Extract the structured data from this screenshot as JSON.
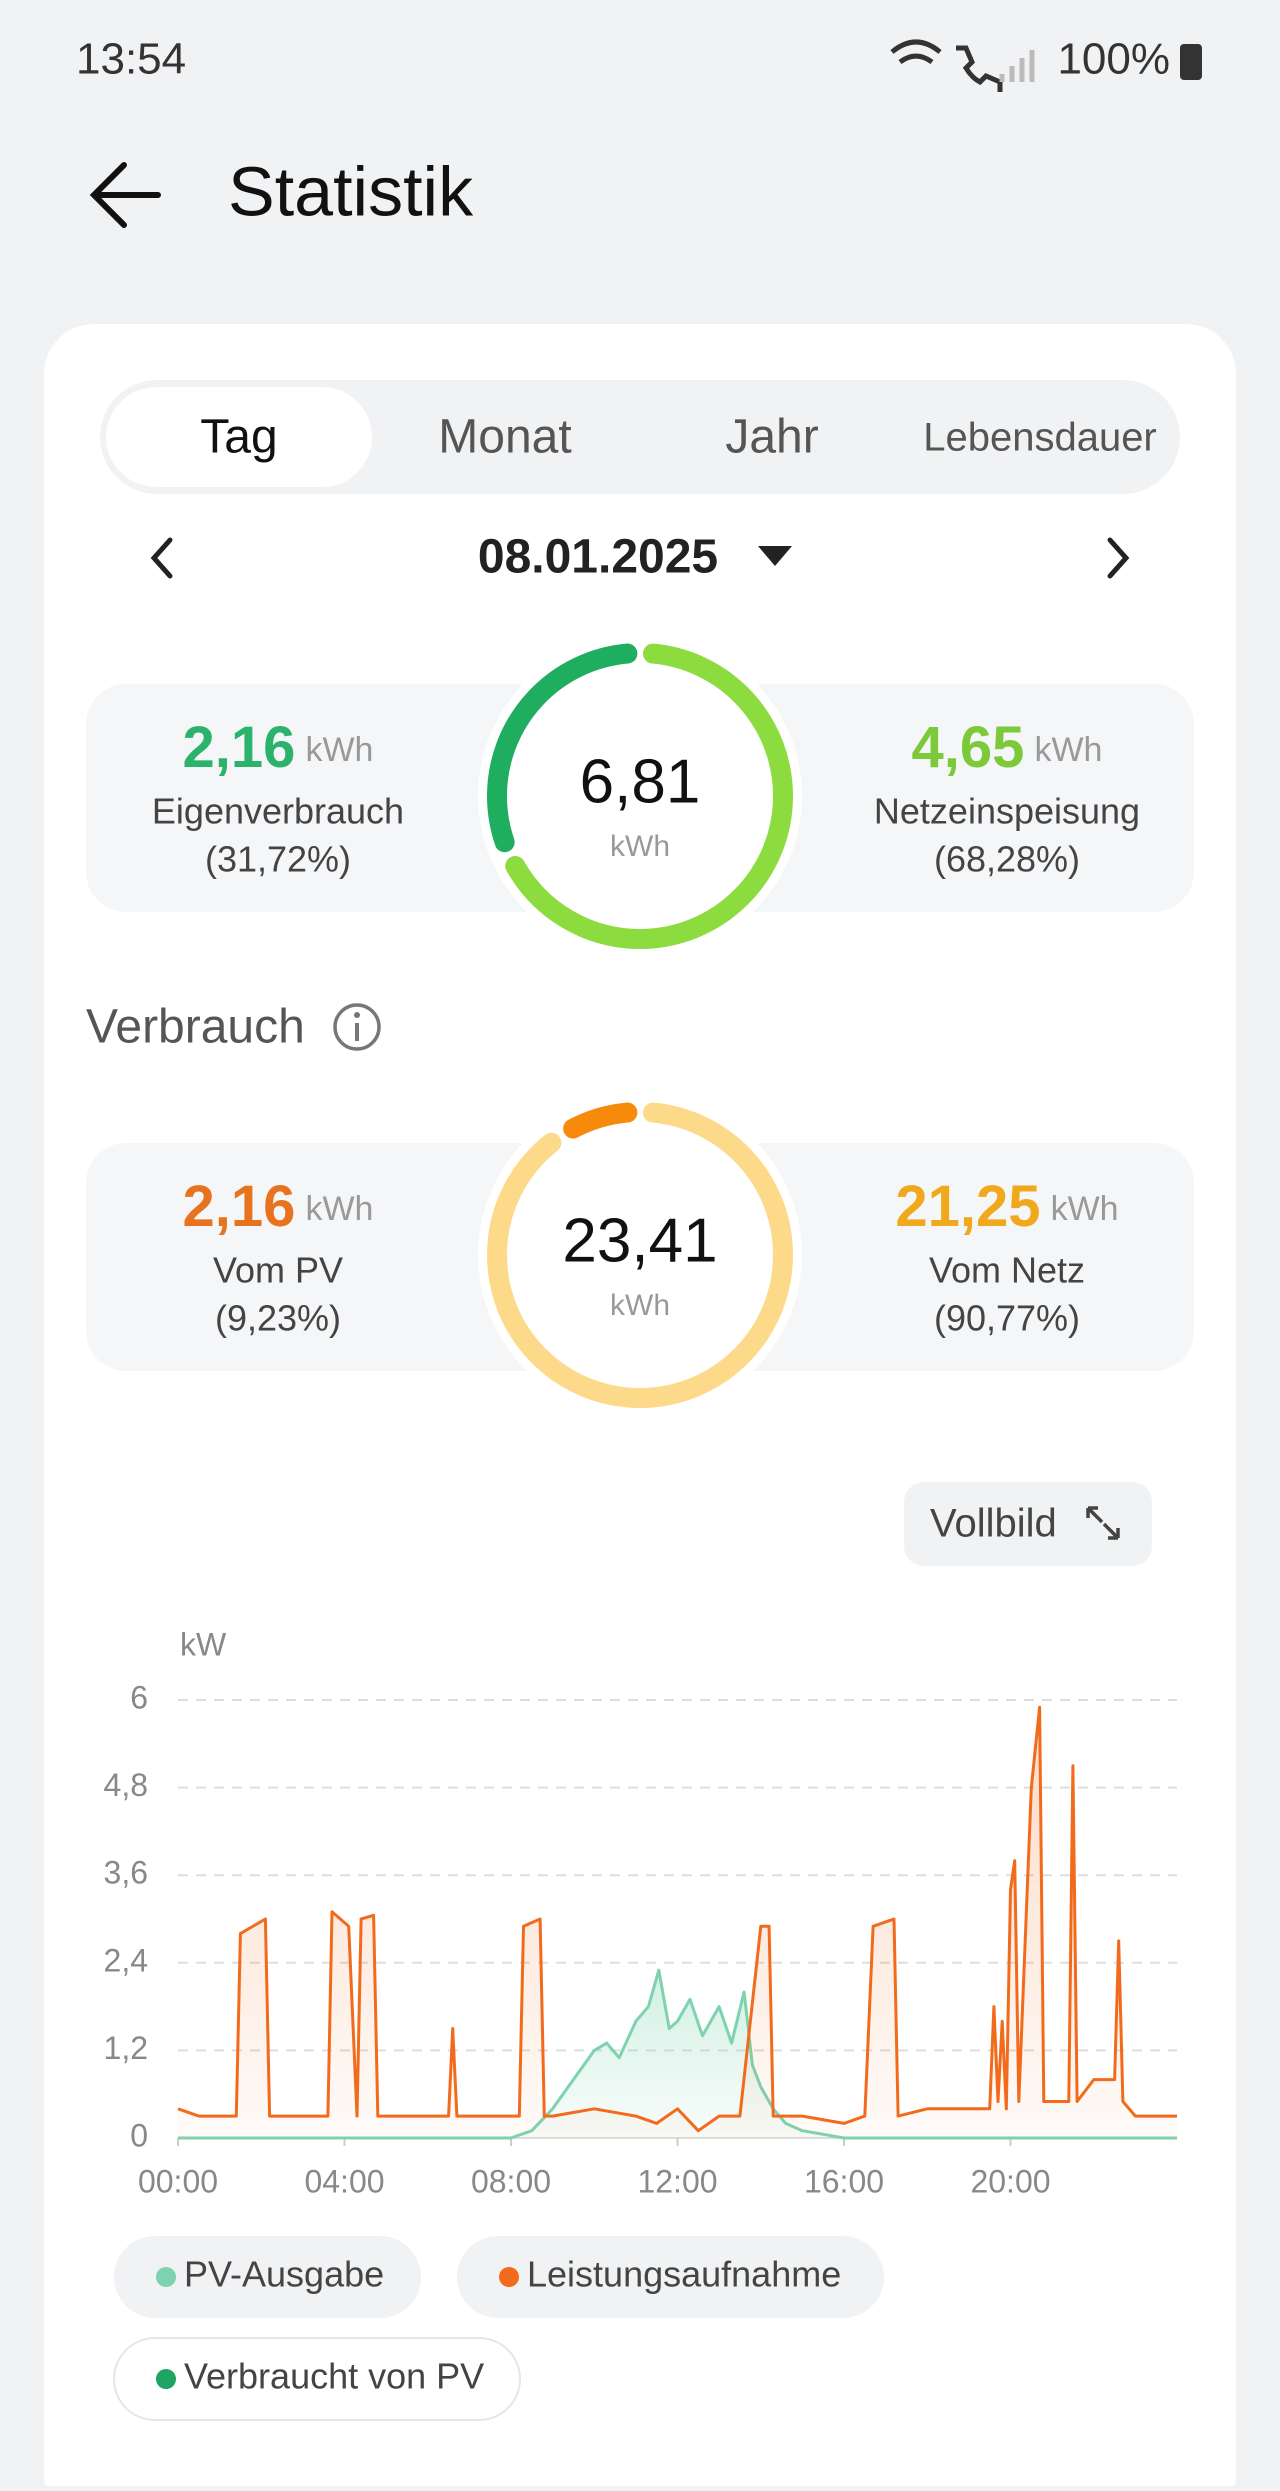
{
  "status": {
    "time": "13:54",
    "battery": "100%"
  },
  "header": {
    "title": "Statistik"
  },
  "tabs": [
    "Tag",
    "Monat",
    "Jahr",
    "Lebensdauer"
  ],
  "date": "08.01.2025",
  "production": {
    "center_value": "6,81",
    "center_unit": "kWh",
    "left": {
      "value": "2,16",
      "unit": "kWh",
      "label": "Eigenverbrauch",
      "percent": "(31,72%)"
    },
    "right": {
      "value": "4,65",
      "unit": "kWh",
      "label": "Netzeinspeisung",
      "percent": "(68,28%)"
    }
  },
  "consumption": {
    "title": "Verbrauch",
    "center_value": "23,41",
    "center_unit": "kWh",
    "left": {
      "value": "2,16",
      "unit": "kWh",
      "label": "Vom PV",
      "percent": "(9,23%)"
    },
    "right": {
      "value": "21,25",
      "unit": "kWh",
      "label": "Vom Netz",
      "percent": "(90,77%)"
    }
  },
  "button": "Vollbild",
  "chart_data": {
    "type": "line",
    "y_unit": "kW",
    "xlim": [
      0,
      24
    ],
    "xticks": [
      {
        "value": 0,
        "label": "00:00"
      },
      {
        "value": 4,
        "label": "04:00"
      },
      {
        "value": 8,
        "label": "08:00"
      },
      {
        "value": 12,
        "label": "12:00"
      },
      {
        "value": 16,
        "label": "16:00"
      },
      {
        "value": 20,
        "label": "20:00"
      }
    ],
    "ylim": [
      0,
      6
    ],
    "yticks": [
      0,
      {
        "value": 1.2,
        "label": "1,2"
      },
      {
        "value": 2.4,
        "label": "2,4"
      },
      {
        "value": 3.6,
        "label": "3,6"
      },
      {
        "value": 4.8,
        "label": "4,8"
      },
      6
    ],
    "grid": true,
    "series": [
      {
        "name": "PV-Ausgabe",
        "color": "#7dd3b0",
        "x": [
          0,
          8,
          8.5,
          9,
          9.5,
          10,
          10.3,
          10.6,
          11,
          11.3,
          11.55,
          11.8,
          12,
          12.3,
          12.6,
          13,
          13.3,
          13.6,
          13.8,
          14,
          14.3,
          14.6,
          15,
          15.5,
          16,
          24
        ],
        "values": [
          0,
          0,
          0.1,
          0.4,
          0.8,
          1.2,
          1.3,
          1.1,
          1.6,
          1.8,
          2.3,
          1.5,
          1.6,
          1.9,
          1.4,
          1.8,
          1.3,
          2.0,
          1.0,
          0.7,
          0.4,
          0.2,
          0.1,
          0.05,
          0,
          0
        ]
      },
      {
        "name": "Leistungsaufnahme",
        "color": "#f26b1d",
        "x": [
          0,
          0.5,
          1.4,
          1.5,
          2.1,
          2.2,
          3.6,
          3.7,
          4.1,
          4.3,
          4.4,
          4.7,
          4.8,
          6.5,
          6.6,
          6.7,
          8.2,
          8.3,
          8.7,
          8.8,
          9,
          10,
          11,
          11.5,
          12,
          12.5,
          13,
          13.5,
          14,
          14.2,
          14.3,
          15,
          16,
          16.5,
          16.7,
          17.2,
          17.3,
          18,
          19.5,
          19.6,
          19.7,
          19.8,
          19.9,
          20,
          20.1,
          20.2,
          20.5,
          20.7,
          20.8,
          21.4,
          21.5,
          21.6,
          22,
          22.5,
          22.6,
          22.7,
          23,
          23.5,
          24
        ],
        "values": [
          0.4,
          0.3,
          0.3,
          2.8,
          3.0,
          0.3,
          0.3,
          3.1,
          2.9,
          0.3,
          3.0,
          3.05,
          0.3,
          0.3,
          1.5,
          0.3,
          0.3,
          2.9,
          3.0,
          0.3,
          0.3,
          0.4,
          0.3,
          0.2,
          0.4,
          0.1,
          0.3,
          0.3,
          2.9,
          2.9,
          0.3,
          0.3,
          0.2,
          0.3,
          2.9,
          3.0,
          0.3,
          0.4,
          0.4,
          1.8,
          0.5,
          1.6,
          0.4,
          3.4,
          3.8,
          0.5,
          4.8,
          5.9,
          0.5,
          0.5,
          5.1,
          0.5,
          0.8,
          0.8,
          2.7,
          0.5,
          0.3,
          0.3,
          0.3
        ]
      },
      {
        "name": "Verbraucht von PV",
        "color": "#1fa463"
      }
    ]
  }
}
